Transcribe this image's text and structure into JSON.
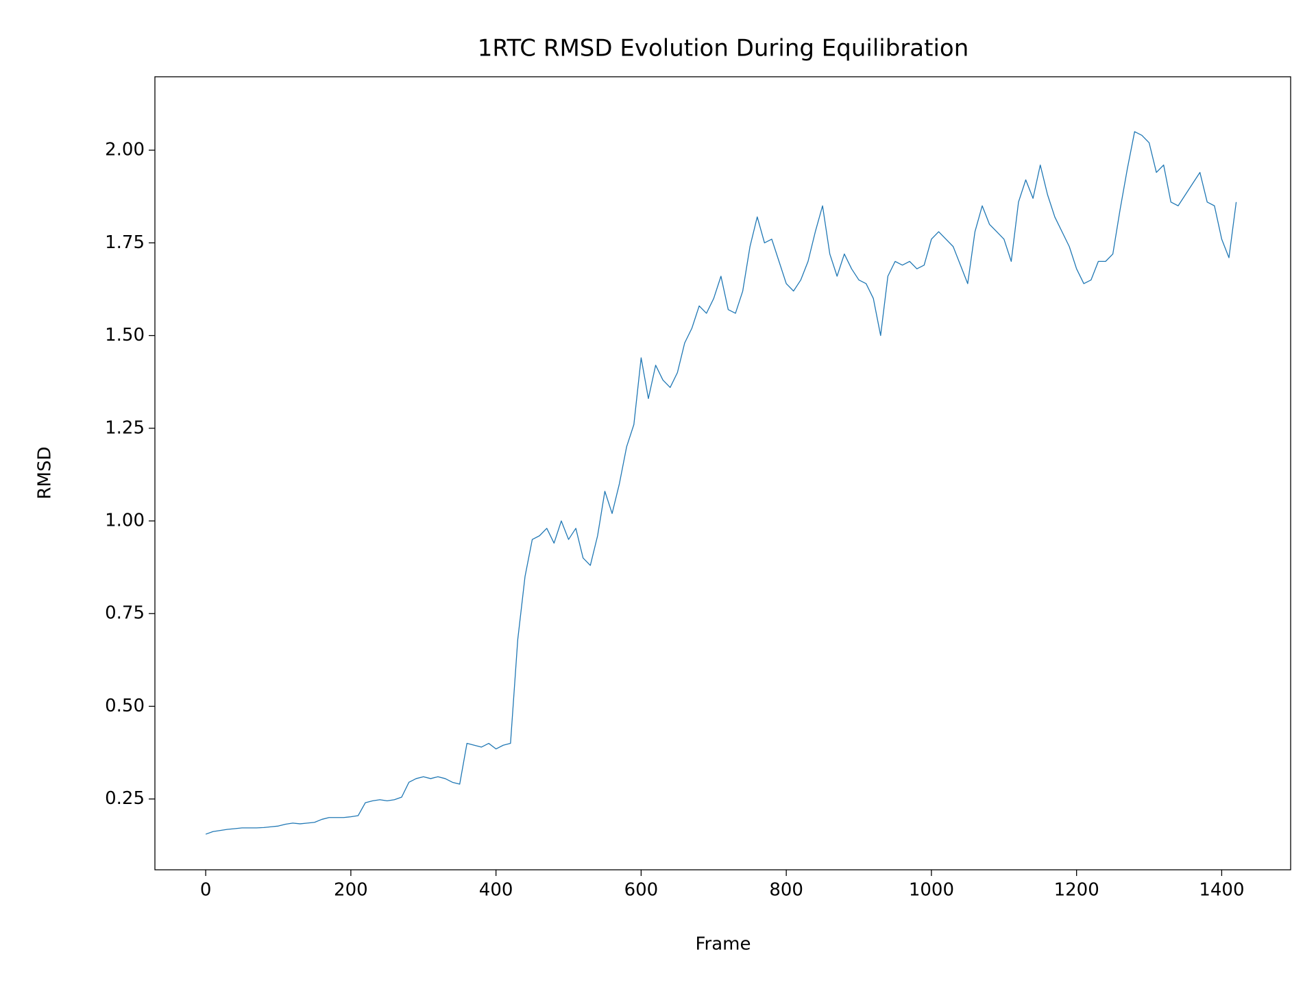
{
  "chart_data": {
    "type": "line",
    "title": "1RTC RMSD Evolution During Equilibration",
    "x_label": "Frame",
    "y_label": "RMSD",
    "x": [
      0,
      10,
      20,
      30,
      40,
      50,
      60,
      70,
      80,
      90,
      100,
      110,
      120,
      130,
      140,
      150,
      160,
      170,
      180,
      190,
      200,
      210,
      220,
      230,
      240,
      250,
      260,
      270,
      280,
      290,
      300,
      310,
      320,
      330,
      340,
      350,
      360,
      370,
      380,
      390,
      400,
      410,
      420,
      430,
      440,
      450,
      460,
      470,
      480,
      490,
      500,
      510,
      520,
      530,
      540,
      550,
      560,
      570,
      580,
      590,
      600,
      610,
      620,
      630,
      640,
      650,
      660,
      670,
      680,
      690,
      700,
      710,
      720,
      730,
      740,
      750,
      760,
      770,
      780,
      790,
      800,
      810,
      820,
      830,
      840,
      850,
      860,
      870,
      880,
      890,
      900,
      910,
      920,
      930,
      940,
      950,
      960,
      970,
      980,
      990,
      1000,
      1010,
      1020,
      1030,
      1040,
      1050,
      1060,
      1070,
      1080,
      1090,
      1100,
      1110,
      1120,
      1130,
      1140,
      1150,
      1160,
      1170,
      1180,
      1190,
      1200,
      1210,
      1220,
      1230,
      1240,
      1250,
      1260,
      1270,
      1280,
      1290,
      1300,
      1310,
      1320,
      1330,
      1340,
      1350,
      1360,
      1370,
      1380,
      1390,
      1400,
      1410,
      1420
    ],
    "series": [
      {
        "name": "RMSD",
        "color": "#1f77b4",
        "values": [
          0.155,
          0.162,
          0.165,
          0.168,
          0.17,
          0.172,
          0.172,
          0.172,
          0.173,
          0.175,
          0.177,
          0.182,
          0.185,
          0.183,
          0.185,
          0.187,
          0.195,
          0.2,
          0.2,
          0.2,
          0.202,
          0.205,
          0.24,
          0.245,
          0.248,
          0.245,
          0.248,
          0.255,
          0.295,
          0.305,
          0.31,
          0.305,
          0.31,
          0.305,
          0.295,
          0.29,
          0.4,
          0.395,
          0.39,
          0.4,
          0.385,
          0.395,
          0.4,
          0.68,
          0.85,
          0.95,
          0.96,
          0.98,
          0.94,
          1.0,
          0.95,
          0.98,
          0.9,
          0.88,
          0.96,
          1.08,
          1.02,
          1.1,
          1.2,
          1.26,
          1.44,
          1.33,
          1.42,
          1.38,
          1.36,
          1.4,
          1.48,
          1.52,
          1.58,
          1.56,
          1.6,
          1.66,
          1.57,
          1.56,
          1.62,
          1.74,
          1.82,
          1.75,
          1.76,
          1.7,
          1.64,
          1.62,
          1.65,
          1.7,
          1.78,
          1.85,
          1.72,
          1.66,
          1.72,
          1.68,
          1.65,
          1.64,
          1.6,
          1.5,
          1.66,
          1.7,
          1.69,
          1.7,
          1.68,
          1.69,
          1.76,
          1.78,
          1.76,
          1.74,
          1.69,
          1.64,
          1.78,
          1.85,
          1.8,
          1.78,
          1.76,
          1.7,
          1.86,
          1.92,
          1.87,
          1.96,
          1.88,
          1.82,
          1.78,
          1.74,
          1.68,
          1.64,
          1.65,
          1.7,
          1.7,
          1.72,
          1.84,
          1.95,
          2.05,
          2.04,
          2.02,
          1.94,
          1.96,
          1.86,
          1.85,
          1.88,
          1.91,
          1.94,
          1.86,
          1.85,
          1.76,
          1.71,
          1.86
        ]
      }
    ],
    "xlim": [
      -70,
      1495
    ],
    "ylim": [
      0.059,
      2.198
    ],
    "xticks": [
      0,
      200,
      400,
      600,
      800,
      1000,
      1200,
      1400
    ],
    "yticks": [
      {
        "value": 0.25,
        "label": "0.25"
      },
      {
        "value": 0.5,
        "label": "0.50"
      },
      {
        "value": 0.75,
        "label": "0.75"
      },
      {
        "value": 1,
        "label": "1.00"
      },
      {
        "value": 1.25,
        "label": "1.25"
      },
      {
        "value": 1.5,
        "label": "1.50"
      },
      {
        "value": 1.75,
        "label": "1.75"
      },
      {
        "value": 2,
        "label": "2.00"
      }
    ],
    "grid": false
  }
}
